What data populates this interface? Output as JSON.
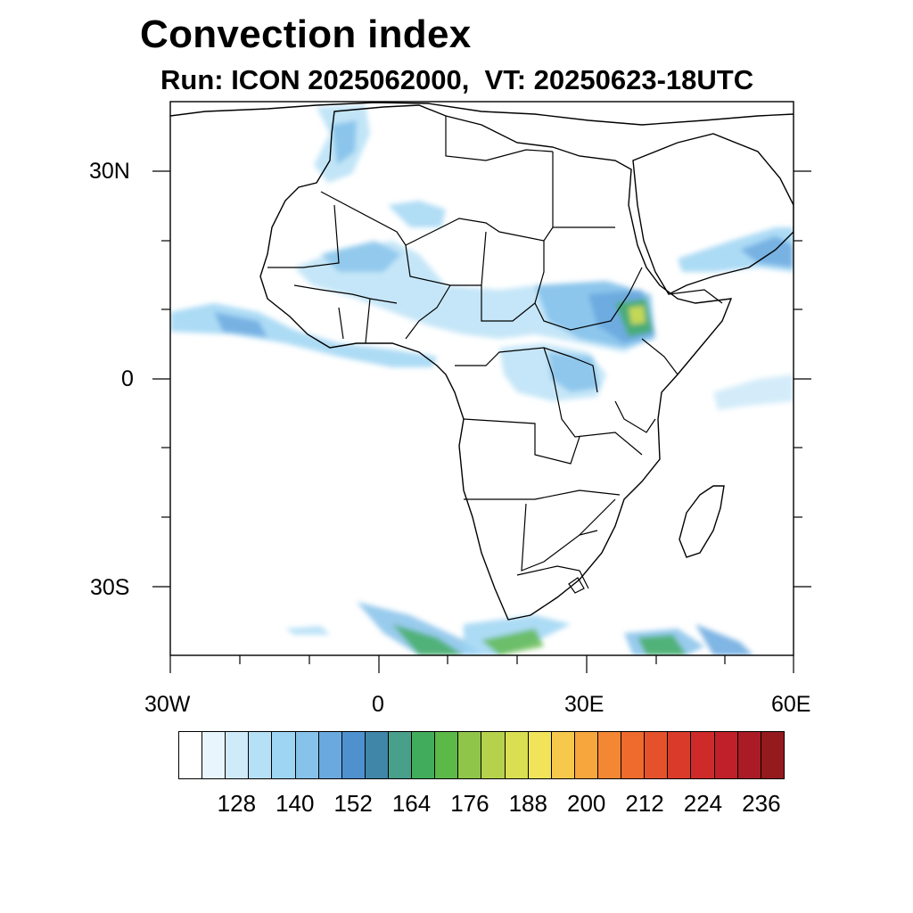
{
  "title": "Convection index",
  "subtitle": "Run: ICON 2025062000,  VT: 20250623-18UTC",
  "axes": {
    "lat_labels": [
      "30N",
      "0",
      "30S"
    ],
    "lon_labels": [
      "30W",
      "0",
      "30E",
      "60E"
    ]
  },
  "colorbar": {
    "colors": [
      "#ffffff",
      "#e8f5fc",
      "#cfeaf8",
      "#b6e0f6",
      "#9dd5f3",
      "#86c2ea",
      "#6aa9df",
      "#4f91cf",
      "#3f86a8",
      "#489f8a",
      "#41ad5c",
      "#5cb847",
      "#8fc64a",
      "#b6d24c",
      "#d9df51",
      "#f2e45a",
      "#f6c94c",
      "#f6a63d",
      "#f48733",
      "#ee6b2d",
      "#e5512a",
      "#d93a2a",
      "#cf2a2a",
      "#c0202a",
      "#ab1b25",
      "#951a1e"
    ],
    "tick_labels": [
      "128",
      "140",
      "152",
      "164",
      "176",
      "188",
      "200",
      "212",
      "224",
      "236"
    ]
  }
}
